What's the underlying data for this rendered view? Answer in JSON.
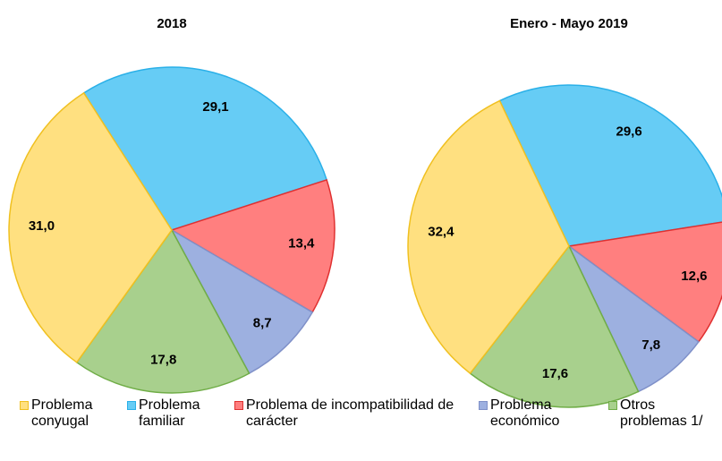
{
  "chart_data": [
    {
      "type": "pie",
      "title": "2018",
      "categories": [
        "Problema familiar",
        "Problema de incompatibilidad de carácter",
        "Problema económico",
        "Otros problemas 1/",
        "Problema conyugal"
      ],
      "values": [
        29.1,
        13.4,
        8.7,
        17.8,
        31.0
      ],
      "value_labels": [
        "29,1",
        "13,4",
        "8,7",
        "17,8",
        "31,0"
      ],
      "colors": [
        "#66ccf5",
        "#ff7f7f",
        "#9db0e0",
        "#a8d08d",
        "#ffe080"
      ]
    },
    {
      "type": "pie",
      "title": "Enero - Mayo 2019",
      "categories": [
        "Problema familiar",
        "Problema de incompatibilidad de carácter",
        "Problema económico",
        "Otros problemas 1/",
        "Problema conyugal"
      ],
      "values": [
        29.6,
        12.6,
        7.8,
        17.6,
        32.4
      ],
      "value_labels": [
        "29,6",
        "12,6",
        "7,8",
        "17,6",
        "32,4"
      ],
      "colors": [
        "#66ccf5",
        "#ff7f7f",
        "#9db0e0",
        "#a8d08d",
        "#ffe080"
      ]
    }
  ],
  "legend": [
    "Problema conyugal",
    "Problema familiar",
    "Problema de incompatibilidad de carácter",
    "Problema económico",
    "Otros problemas 1/"
  ]
}
